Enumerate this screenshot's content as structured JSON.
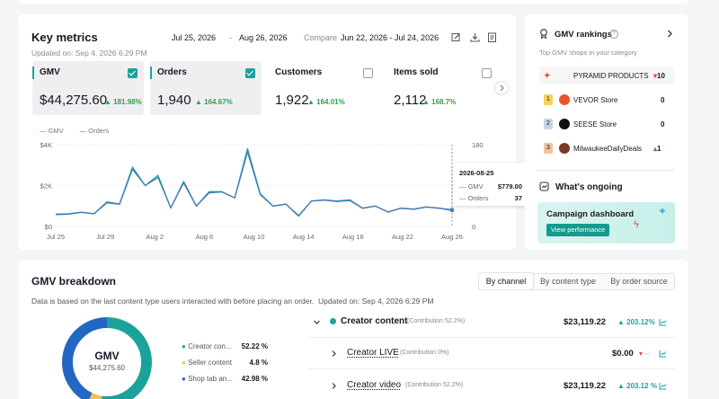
{
  "key_metrics": {
    "title": "Key metrics",
    "updated": "Updated on: Sep 4, 2026 6:29 PM",
    "date_start": "Jul 25, 2026",
    "date_sep": "-",
    "date_end": "Aug 26, 2026",
    "compare_label": "Compare",
    "compare_range": "Jun 22, 2026 - Jul 24, 2026",
    "tiles": [
      {
        "label": "GMV",
        "value": "$44,275.60",
        "change": "181.98%",
        "checked": true
      },
      {
        "label": "Orders",
        "value": "1,940",
        "change": "164.67%",
        "checked": true
      },
      {
        "label": "Customers",
        "value": "1,922",
        "change": "164.01%",
        "checked": false
      },
      {
        "label": "Items sold",
        "value": "2,112",
        "change": "168.7%",
        "checked": false
      }
    ]
  },
  "chart_data": {
    "type": "line",
    "legend": [
      "GMV",
      "Orders"
    ],
    "x_ticks": [
      "Jul 25",
      "Jul 29",
      "Aug 2",
      "Aug 6",
      "Aug 10",
      "Aug 14",
      "Aug 18",
      "Aug 22",
      "Aug 26"
    ],
    "y_left_ticks": [
      "$4K",
      "$2K",
      "$0"
    ],
    "y_right_ticks": [
      "180",
      "90",
      "0"
    ],
    "y_left_range": [
      0,
      4000
    ],
    "y_right_range": [
      0,
      180
    ],
    "series": [
      {
        "name": "GMV",
        "color": "#1aa39a",
        "values": [
          600,
          620,
          700,
          620,
          1200,
          1100,
          2900,
          2000,
          2500,
          900,
          2200,
          1000,
          1700,
          1700,
          1400,
          3800,
          1600,
          1000,
          1100,
          500,
          1250,
          1300,
          1250,
          1300,
          900,
          1000,
          700,
          900,
          850,
          950,
          900,
          779
        ]
      },
      {
        "name": "Orders",
        "color": "#4a78b8",
        "values": [
          26,
          27,
          31,
          28,
          52,
          49,
          126,
          90,
          108,
          41,
          96,
          45,
          74,
          76,
          63,
          164,
          70,
          45,
          49,
          24,
          56,
          58,
          55,
          57,
          40,
          45,
          32,
          40,
          38,
          43,
          40,
          37
        ]
      }
    ],
    "tooltip": {
      "date": "2026-08-25",
      "rows": [
        {
          "name": "GMV",
          "value": "$779.00"
        },
        {
          "name": "Orders",
          "value": "37"
        }
      ]
    }
  },
  "rankings": {
    "title": "GMV rankings",
    "subtitle": "Top GMV shops in your category",
    "items": [
      {
        "rank": "",
        "name": "PYRAMID PRODUCTS",
        "delta": "10",
        "dir": "down"
      },
      {
        "rank": "1",
        "name": "VEVOR Store",
        "delta": "0",
        "dir": "none"
      },
      {
        "rank": "2",
        "name": "SEESE Store",
        "delta": "0",
        "dir": "none"
      },
      {
        "rank": "3",
        "name": "MilwaukeeDailyDeals",
        "delta": "1",
        "dir": "up"
      }
    ]
  },
  "ongoing": {
    "title": "What's ongoing",
    "campaign_title": "Campaign dashboard",
    "campaign_button": "View performance"
  },
  "breakdown": {
    "title": "GMV breakdown",
    "tabs": [
      "By channel",
      "By content type",
      "By order source"
    ],
    "active_tab": 0,
    "note": "Data is based on the last content type users interacted with before placing an order.  Updated on: Sep 4, 2026 6:29 PM",
    "donut": {
      "label": "GMV",
      "value": "$44,275.60"
    },
    "legend": [
      {
        "name": "Creator con...",
        "pct": "52.22 %",
        "color": "#1aa39a"
      },
      {
        "name": "Seller content",
        "pct": "4.8 %",
        "color": "#f2c14e"
      },
      {
        "name": "Shop tab an...",
        "pct": "42.98 %",
        "color": "#2367c4"
      }
    ],
    "rows": [
      {
        "name": "Creator content",
        "contrib": "(Contribution 52.2%)",
        "value": "$23,119.22",
        "change": "203.12%",
        "trend": "up"
      },
      {
        "name": "Creator LIVE",
        "contrib": "(Contribution 0%)",
        "value": "$0.00",
        "change": "--",
        "trend": "down"
      },
      {
        "name": "Creator video",
        "contrib": "(Contribution 52.2%)",
        "value": "$23,119.22",
        "change": "203.12 %",
        "trend": "up"
      }
    ]
  }
}
